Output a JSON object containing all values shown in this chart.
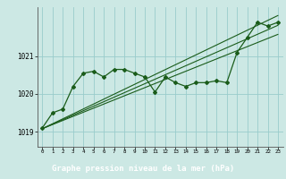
{
  "background_color": "#cce8e4",
  "grid_color": "#99cccc",
  "line_color": "#1a5c1a",
  "title": "Graphe pression niveau de la mer (hPa)",
  "yticks": [
    1019,
    1020,
    1021
  ],
  "xlim": [
    -0.5,
    23.5
  ],
  "ylim": [
    1018.6,
    1022.3
  ],
  "x_ticks": [
    0,
    1,
    2,
    3,
    4,
    5,
    6,
    7,
    8,
    9,
    10,
    11,
    12,
    13,
    14,
    15,
    16,
    17,
    18,
    19,
    20,
    21,
    22,
    23
  ],
  "pressure_data": [
    1019.1,
    1019.5,
    1019.6,
    1020.2,
    1020.55,
    1020.6,
    1020.45,
    1020.65,
    1020.65,
    1020.55,
    1020.45,
    1020.05,
    1020.45,
    1020.3,
    1020.2,
    1020.3,
    1020.3,
    1020.35,
    1020.3,
    1021.1,
    1021.5,
    1021.9,
    1021.8,
    1021.9
  ],
  "trend_lines": [
    {
      "x": [
        0,
        23
      ],
      "y": [
        1019.08,
        1022.08
      ]
    },
    {
      "x": [
        0,
        23
      ],
      "y": [
        1019.08,
        1021.82
      ]
    },
    {
      "x": [
        0,
        23
      ],
      "y": [
        1019.08,
        1021.58
      ]
    }
  ],
  "footer_bg": "#4a7a4a",
  "footer_text_color": "#ffffff"
}
